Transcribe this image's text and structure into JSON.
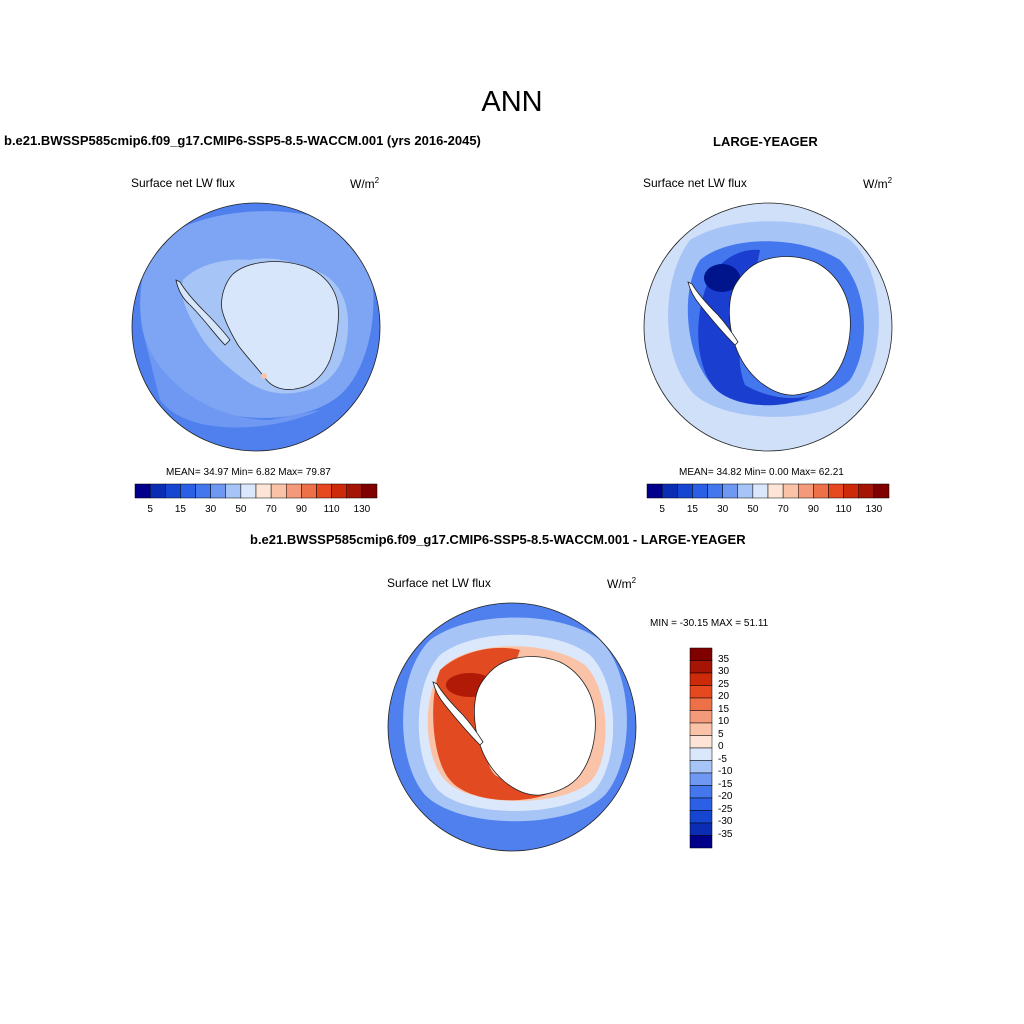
{
  "title": "ANN",
  "panels": [
    {
      "case": "b.e21.BWSSP585cmip6.f09_g17.CMIP6-SSP5-8.5-WACCM.001 (yrs 2016-2045)",
      "label": "Surface net LW flux",
      "units": "W/m",
      "units_sup": "2",
      "stats": "MEAN=  34.97  Min=   6.82  Max=  79.87"
    },
    {
      "case": "LARGE-YEAGER",
      "label": "Surface net LW flux",
      "units": "W/m",
      "units_sup": "2",
      "stats": "MEAN=  34.82  Min=   0.00  Max=  62.21"
    },
    {
      "case": "b.e21.BWSSP585cmip6.f09_g17.CMIP6-SSP5-8.5-WACCM.001 - LARGE-YEAGER",
      "label": "Surface net LW flux",
      "units": "W/m",
      "units_sup": "2",
      "stats": "MIN = -30.15 MAX =  51.11"
    }
  ],
  "colorbar_abs": {
    "colors": [
      "#00008b",
      "#0a2db4",
      "#1546d2",
      "#2a5fe6",
      "#4477ee",
      "#6e98f2",
      "#a6c4f6",
      "#dbe8fb",
      "#fde4d6",
      "#fac3a7",
      "#f49a7a",
      "#ee7049",
      "#e64820",
      "#cc2a08",
      "#a51405",
      "#800000"
    ],
    "labels": [
      "5",
      "15",
      "30",
      "50",
      "70",
      "90",
      "110",
      "130"
    ]
  },
  "colorbar_diff": {
    "colors": [
      "#800000",
      "#a51405",
      "#cc2a08",
      "#e64820",
      "#ee7049",
      "#f49a7a",
      "#fac3a7",
      "#fde4d6",
      "#dbe8fb",
      "#a6c4f6",
      "#6e98f2",
      "#4477ee",
      "#2a5fe6",
      "#1546d2",
      "#0a2db4",
      "#00008b"
    ],
    "labels": [
      "35",
      "30",
      "25",
      "20",
      "15",
      "10",
      "5",
      "0",
      "-5",
      "-10",
      "-15",
      "-20",
      "-25",
      "-30",
      "-35"
    ]
  },
  "map_colors": {
    "ocean_mid": "#4f80ee",
    "ocean_light": "#7ea5f3",
    "ice_light": "#d7e6fa",
    "pale": "#cfe0f8",
    "deep": "#1a3fd0",
    "navy": "#00148c",
    "red": "#e24a22",
    "dark_red": "#b01a06",
    "salmon": "#f49a7a",
    "peach": "#fac3a7",
    "land": "#ffffff"
  }
}
